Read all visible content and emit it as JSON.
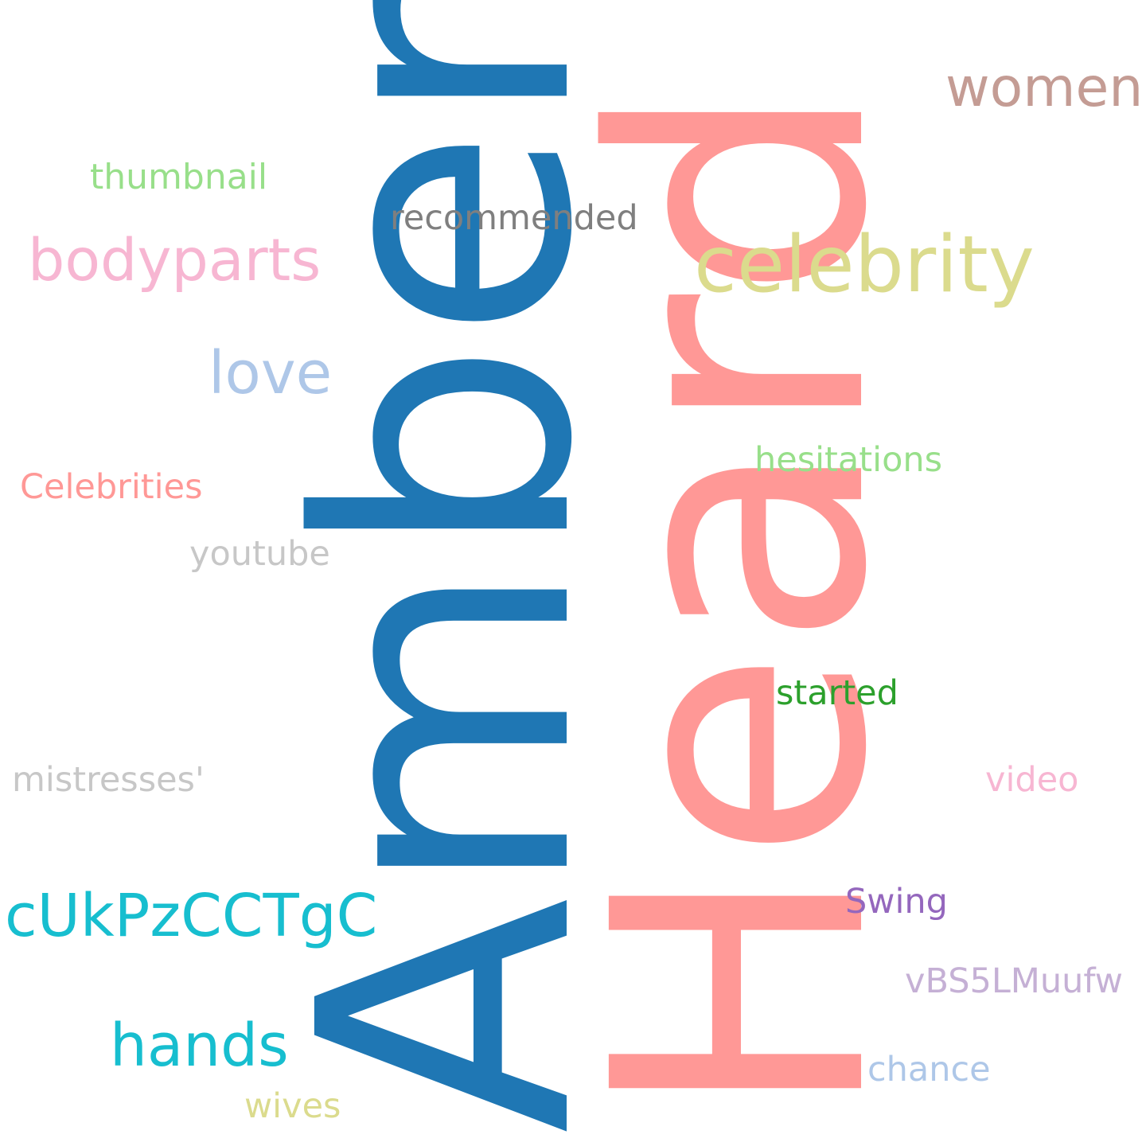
{
  "background_color": "#ffffff",
  "words": {
    "amber": {
      "text": "Amber",
      "color": "#1f77b4"
    },
    "heard": {
      "text": "Heard",
      "color": "#ff9896"
    },
    "women": {
      "text": "women",
      "color": "#c49c94"
    },
    "celebrity": {
      "text": "celebrity",
      "color": "#dbdb8d"
    },
    "thumbnail": {
      "text": "thumbnail",
      "color": "#98df8a"
    },
    "recommended": {
      "text": "recommended",
      "color": "#7f7f7f"
    },
    "bodyparts": {
      "text": "bodyparts",
      "color": "#f7b6d2"
    },
    "love": {
      "text": "love",
      "color": "#aec7e8"
    },
    "hesitations": {
      "text": "hesitations",
      "color": "#98df8a"
    },
    "celebrities": {
      "text": "Celebrities",
      "color": "#ff9896"
    },
    "youtube": {
      "text": "youtube",
      "color": "#c7c7c7"
    },
    "started": {
      "text": "started",
      "color": "#2ca02c"
    },
    "mistresses": {
      "text": "mistresses'",
      "color": "#c7c7c7"
    },
    "video": {
      "text": "video",
      "color": "#f7b6d2"
    },
    "cukpzcctgc": {
      "text": "cUkPzCCTgC",
      "color": "#17becf"
    },
    "swing": {
      "text": "Swing",
      "color": "#9467bd"
    },
    "vbs5lmuufw": {
      "text": "vBS5LMuufw",
      "color": "#c5b0d5"
    },
    "hands": {
      "text": "hands",
      "color": "#17becf"
    },
    "chance": {
      "text": "chance",
      "color": "#aec7e8"
    },
    "wives": {
      "text": "wives",
      "color": "#dbdb8d"
    }
  }
}
